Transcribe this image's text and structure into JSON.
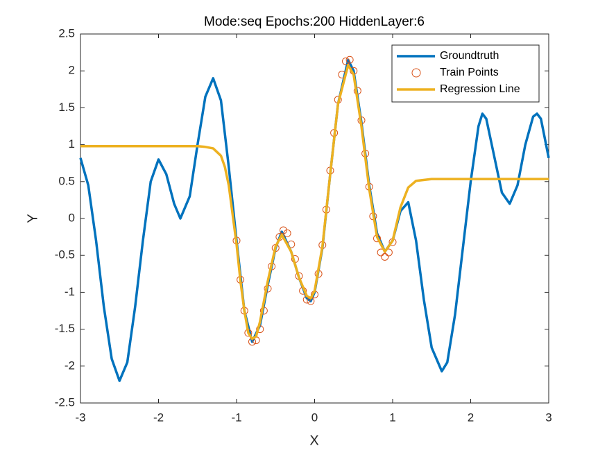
{
  "chart_data": {
    "type": "line",
    "title": "Mode:seq Epochs:200 HiddenLayer:6",
    "x_label": "X",
    "y_label": "Y",
    "xlim": [
      -3,
      3
    ],
    "xticks": [
      -3,
      -2,
      -1,
      0,
      1,
      2,
      3
    ],
    "ylim": [
      -2.5,
      2.5
    ],
    "yticks": [
      -2.5,
      -2,
      -1.5,
      -1,
      -0.5,
      0,
      0.5,
      1,
      1.5,
      2,
      2.5
    ],
    "grid": false,
    "legend": "northeast",
    "series": [
      {
        "name": "Groundtruth",
        "color": "#0072BD",
        "style": "line",
        "x": [
          -3,
          -2.9,
          -2.8,
          -2.7,
          -2.6,
          -2.5,
          -2.4,
          -2.3,
          -2.2,
          -2.1,
          -2.0,
          -1.9,
          -1.8,
          -1.72,
          -1.6,
          -1.5,
          -1.4,
          -1.3,
          -1.2,
          -1.1,
          -1.0,
          -0.9,
          -0.8,
          -0.7,
          -0.6,
          -0.5,
          -0.42,
          -0.3,
          -0.2,
          -0.1,
          -0.05,
          0.0,
          0.1,
          0.2,
          0.3,
          0.43,
          0.5,
          0.6,
          0.7,
          0.8,
          0.9,
          1.0,
          1.1,
          1.2,
          1.3,
          1.4,
          1.5,
          1.63,
          1.7,
          1.8,
          1.9,
          2.0,
          2.1,
          2.15,
          2.2,
          2.3,
          2.4,
          2.5,
          2.6,
          2.7,
          2.8,
          2.85,
          2.9,
          3.0
        ],
        "values": [
          0.82,
          0.45,
          -0.3,
          -1.2,
          -1.9,
          -2.2,
          -1.95,
          -1.2,
          -0.3,
          0.5,
          0.8,
          0.6,
          0.2,
          0.0,
          0.3,
          1.0,
          1.65,
          1.9,
          1.6,
          0.7,
          -0.3,
          -1.25,
          -1.67,
          -1.45,
          -0.9,
          -0.4,
          -0.18,
          -0.45,
          -0.8,
          -1.08,
          -1.12,
          -1.0,
          -0.4,
          0.6,
          1.55,
          2.15,
          2.0,
          1.3,
          0.45,
          -0.2,
          -0.45,
          -0.3,
          0.1,
          0.22,
          -0.3,
          -1.1,
          -1.75,
          -2.07,
          -1.95,
          -1.3,
          -0.4,
          0.5,
          1.25,
          1.42,
          1.35,
          0.85,
          0.35,
          0.2,
          0.45,
          1.0,
          1.38,
          1.42,
          1.35,
          0.82
        ]
      },
      {
        "name": "Train Points",
        "color": "#D95319",
        "style": "marker",
        "x": [
          -1.0,
          -0.95,
          -0.9,
          -0.85,
          -0.8,
          -0.75,
          -0.7,
          -0.65,
          -0.6,
          -0.55,
          -0.5,
          -0.45,
          -0.4,
          -0.35,
          -0.3,
          -0.25,
          -0.2,
          -0.15,
          -0.1,
          -0.05,
          0.0,
          0.05,
          0.1,
          0.15,
          0.2,
          0.25,
          0.3,
          0.35,
          0.4,
          0.45,
          0.5,
          0.55,
          0.6,
          0.65,
          0.7,
          0.75,
          0.8,
          0.85,
          0.9,
          0.95,
          1.0
        ],
        "values": [
          -0.3,
          -0.83,
          -1.25,
          -1.55,
          -1.67,
          -1.65,
          -1.5,
          -1.25,
          -0.95,
          -0.65,
          -0.4,
          -0.25,
          -0.16,
          -0.2,
          -0.35,
          -0.55,
          -0.78,
          -0.98,
          -1.1,
          -1.12,
          -1.03,
          -0.75,
          -0.36,
          0.12,
          0.65,
          1.16,
          1.61,
          1.95,
          2.13,
          2.15,
          2.0,
          1.73,
          1.33,
          0.88,
          0.43,
          0.03,
          -0.27,
          -0.46,
          -0.52,
          -0.46,
          -0.32
        ]
      },
      {
        "name": "Regression Line",
        "color": "#EDB120",
        "style": "line",
        "x": [
          -3,
          -1.5,
          -1.4,
          -1.3,
          -1.2,
          -1.15,
          -1.1,
          -1.05,
          -1.0,
          -0.95,
          -0.9,
          -0.85,
          -0.8,
          -0.75,
          -0.7,
          -0.6,
          -0.5,
          -0.42,
          -0.3,
          -0.2,
          -0.1,
          -0.05,
          0.0,
          0.1,
          0.2,
          0.3,
          0.43,
          0.5,
          0.6,
          0.7,
          0.8,
          0.9,
          1.0,
          1.1,
          1.2,
          1.3,
          1.5,
          3
        ],
        "values": [
          0.98,
          0.98,
          0.97,
          0.95,
          0.85,
          0.7,
          0.45,
          0.05,
          -0.35,
          -0.85,
          -1.25,
          -1.55,
          -1.63,
          -1.6,
          -1.4,
          -0.85,
          -0.38,
          -0.22,
          -0.45,
          -0.8,
          -1.05,
          -1.08,
          -0.98,
          -0.38,
          0.6,
          1.55,
          2.08,
          1.95,
          1.25,
          0.4,
          -0.25,
          -0.45,
          -0.3,
          0.15,
          0.42,
          0.51,
          0.535,
          0.535
        ]
      }
    ]
  }
}
